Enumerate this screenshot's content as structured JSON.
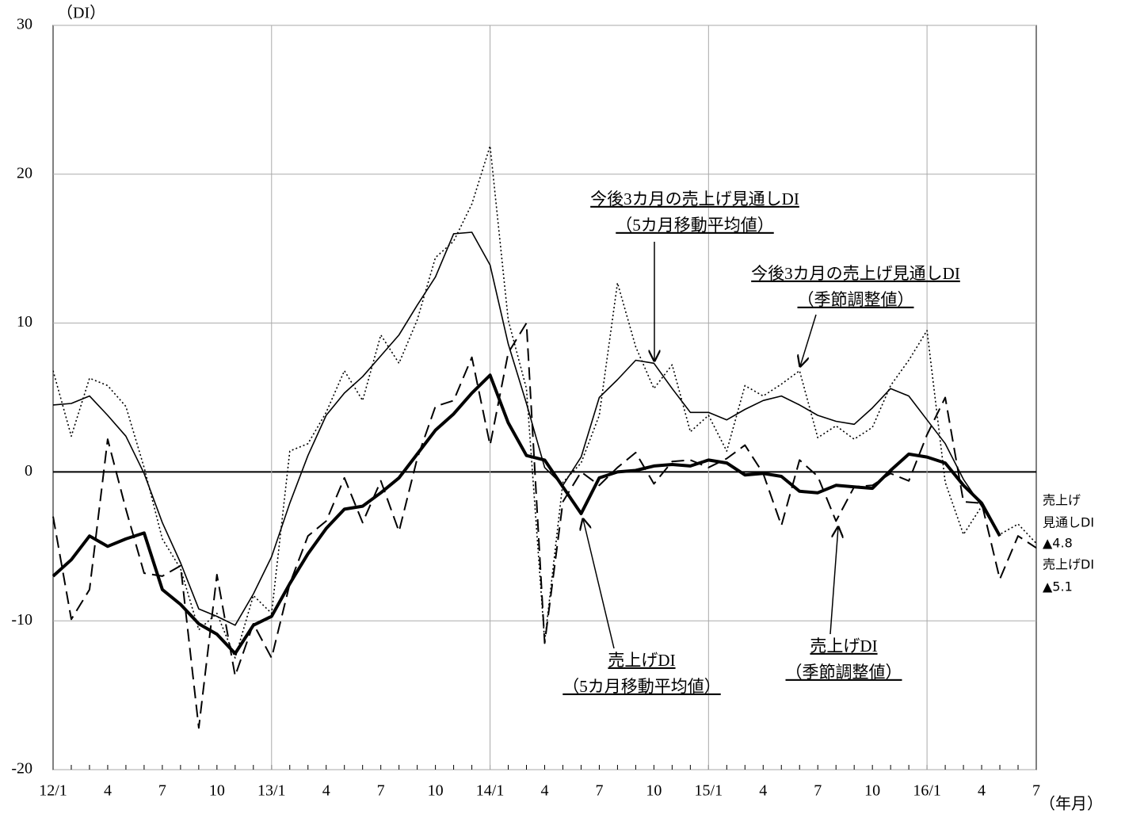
{
  "chart_data": {
    "type": "line",
    "y_unit": "（DI）",
    "x_unit": "（年月）",
    "categories": [
      "12/1",
      null,
      null,
      "4",
      null,
      null,
      "7",
      null,
      null,
      "10",
      null,
      null,
      "13/1",
      null,
      null,
      "4",
      null,
      null,
      "7",
      null,
      null,
      "10",
      null,
      null,
      "14/1",
      null,
      null,
      "4",
      null,
      null,
      "7",
      null,
      null,
      "10",
      null,
      null,
      "15/1",
      null,
      null,
      "4",
      null,
      null,
      "7",
      null,
      null,
      "10",
      null,
      null,
      "16/1",
      null,
      null,
      "4",
      null,
      null,
      "7"
    ],
    "series": [
      {
        "color": "#000000",
        "values": [
          4.5,
          4.6,
          5.1,
          3.8,
          2.4,
          -0.1,
          -3.4,
          -6.1,
          -9.2,
          -9.7,
          -10.3,
          -8.2,
          -5.7,
          -2.1,
          1.1,
          3.8,
          5.3,
          6.4,
          7.8,
          9.2,
          11.2,
          13.1,
          16.0,
          16.1,
          13.9,
          8.6,
          4.6,
          0.3,
          -0.9,
          1.0,
          5.0,
          6.2,
          7.5,
          7.3,
          5.6,
          4.0,
          4.0,
          3.5,
          4.2,
          4.8,
          5.1,
          4.5,
          3.8,
          3.4,
          3.2,
          4.3,
          5.6,
          5.1,
          3.5,
          1.9,
          -0.5,
          -2.3,
          -4.3,
          null,
          null
        ]
      },
      {
        "color": "#000000",
        "values": [
          6.8,
          2.4,
          6.3,
          5.8,
          4.4,
          0.3,
          -4.5,
          -6.5,
          -10.6,
          -9.5,
          -12.5,
          -8.3,
          -9.5,
          1.4,
          1.9,
          4.0,
          6.8,
          4.8,
          9.2,
          7.3,
          10.2,
          14.4,
          15.5,
          18.0,
          21.9,
          10.2,
          5.6,
          -11.4,
          -0.7,
          0.6,
          3.8,
          12.7,
          8.4,
          5.6,
          7.2,
          2.7,
          3.8,
          1.4,
          5.8,
          5.1,
          5.9,
          6.8,
          2.3,
          3.1,
          2.2,
          3.0,
          5.8,
          7.5,
          9.5,
          -0.7,
          -4.2,
          -2.3,
          -4.2,
          -3.5,
          -4.8
        ]
      },
      {
        "color": "#000000",
        "values": [
          -7.0,
          -5.9,
          -4.3,
          -5.0,
          -4.5,
          -4.1,
          -7.9,
          -8.9,
          -10.2,
          -10.9,
          -12.2,
          -10.3,
          -9.7,
          -7.5,
          -5.5,
          -3.8,
          -2.5,
          -2.3,
          -1.4,
          -0.4,
          1.2,
          2.8,
          3.9,
          5.3,
          6.5,
          3.3,
          1.1,
          0.8,
          -1.0,
          -2.8,
          -0.4,
          0.0,
          0.1,
          0.4,
          0.5,
          0.4,
          0.8,
          0.6,
          -0.2,
          -0.1,
          -0.3,
          -1.3,
          -1.4,
          -0.9,
          -1.0,
          -1.1,
          0.1,
          1.2,
          1.0,
          0.6,
          -0.9,
          -2.1,
          -4.3,
          null,
          null
        ]
      },
      {
        "color": "#000000",
        "values": [
          -3.0,
          -9.9,
          -7.9,
          2.2,
          -2.5,
          -6.8,
          -7.0,
          -6.3,
          -17.2,
          -6.9,
          -13.7,
          -10.2,
          -12.5,
          -7.5,
          -4.3,
          -3.3,
          -0.4,
          -3.4,
          -0.6,
          -4.0,
          0.9,
          4.4,
          4.8,
          7.7,
          1.8,
          8.0,
          10.0,
          -11.5,
          -2.0,
          0.0,
          -0.9,
          0.3,
          1.3,
          -0.8,
          0.7,
          0.8,
          0.3,
          0.9,
          1.8,
          -0.1,
          -3.6,
          0.8,
          -0.3,
          -3.3,
          -1.0,
          -0.9,
          -0.1,
          -0.6,
          2.5,
          5.0,
          -2.0,
          -2.1,
          -7.2,
          -4.3,
          -5.1
        ]
      }
    ],
    "ylim": [
      -20,
      30
    ],
    "yticks": [
      -20,
      -10,
      0,
      10,
      20,
      30
    ],
    "grid": true,
    "annotations": [
      {
        "lines": [
          "今後3カ月の売上げ見通しDI",
          "（5カ月移動平均値）"
        ]
      },
      {
        "lines": [
          "今後3カ月の売上げ見通しDI",
          "（季節調整値）"
        ]
      },
      {
        "lines": [
          "売上げDI",
          "（5カ月移動平均値）"
        ]
      },
      {
        "lines": [
          "売上げDI",
          "（季節調整値）"
        ]
      }
    ],
    "end_labels": [
      "売上げ",
      "見通しDI",
      "▲4.8",
      "売上げDI",
      "▲5.1"
    ]
  }
}
